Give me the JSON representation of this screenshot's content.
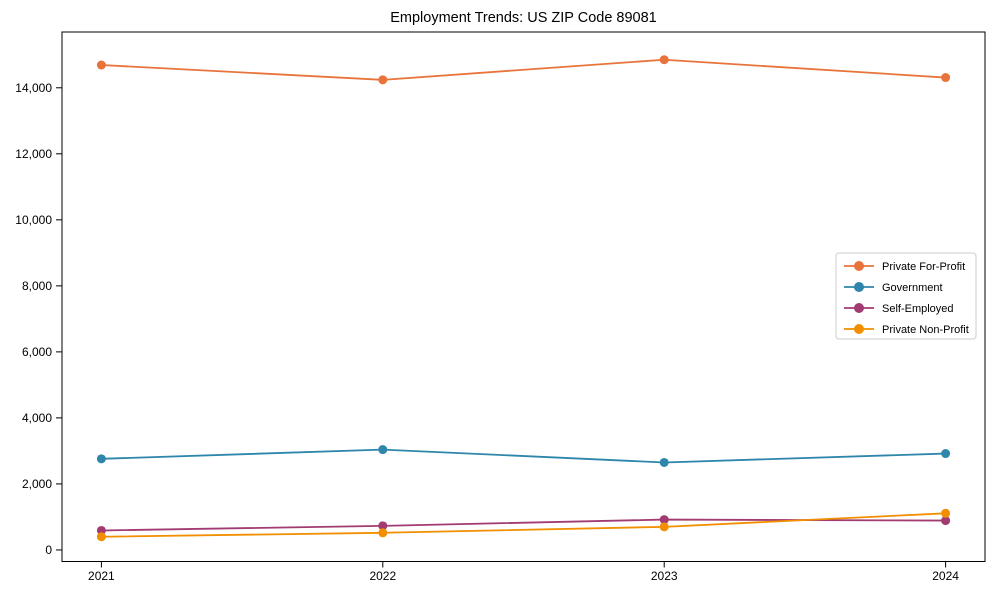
{
  "chart_data": {
    "type": "line",
    "title": "Employment Trends: US ZIP Code 89081",
    "xlabel": "",
    "ylabel": "",
    "x": [
      2021,
      2022,
      2023,
      2024
    ],
    "xtick_labels": [
      "2021",
      "2022",
      "2023",
      "2024"
    ],
    "yticks": [
      0,
      2000,
      4000,
      6000,
      8000,
      10000,
      12000,
      14000
    ],
    "ytick_labels": [
      "0",
      "2,000",
      "4,000",
      "6,000",
      "8,000",
      "10,000",
      "12,000",
      "14,000"
    ],
    "ylim": [
      -350,
      15690
    ],
    "xlim": [
      2020.86,
      2024.14
    ],
    "grid": false,
    "legend_position": "center-right",
    "series": [
      {
        "name": "Private For-Profit",
        "color": "#E8743B",
        "values": [
          14690,
          14240,
          14850,
          14310
        ]
      },
      {
        "name": "Government",
        "color": "#2E86AB",
        "values": [
          2760,
          3040,
          2650,
          2920
        ]
      },
      {
        "name": "Self-Employed",
        "color": "#A23B72",
        "values": [
          590,
          730,
          920,
          890
        ]
      },
      {
        "name": "Private Non-Profit",
        "color": "#F18F01",
        "values": [
          400,
          520,
          700,
          1110
        ]
      }
    ]
  }
}
